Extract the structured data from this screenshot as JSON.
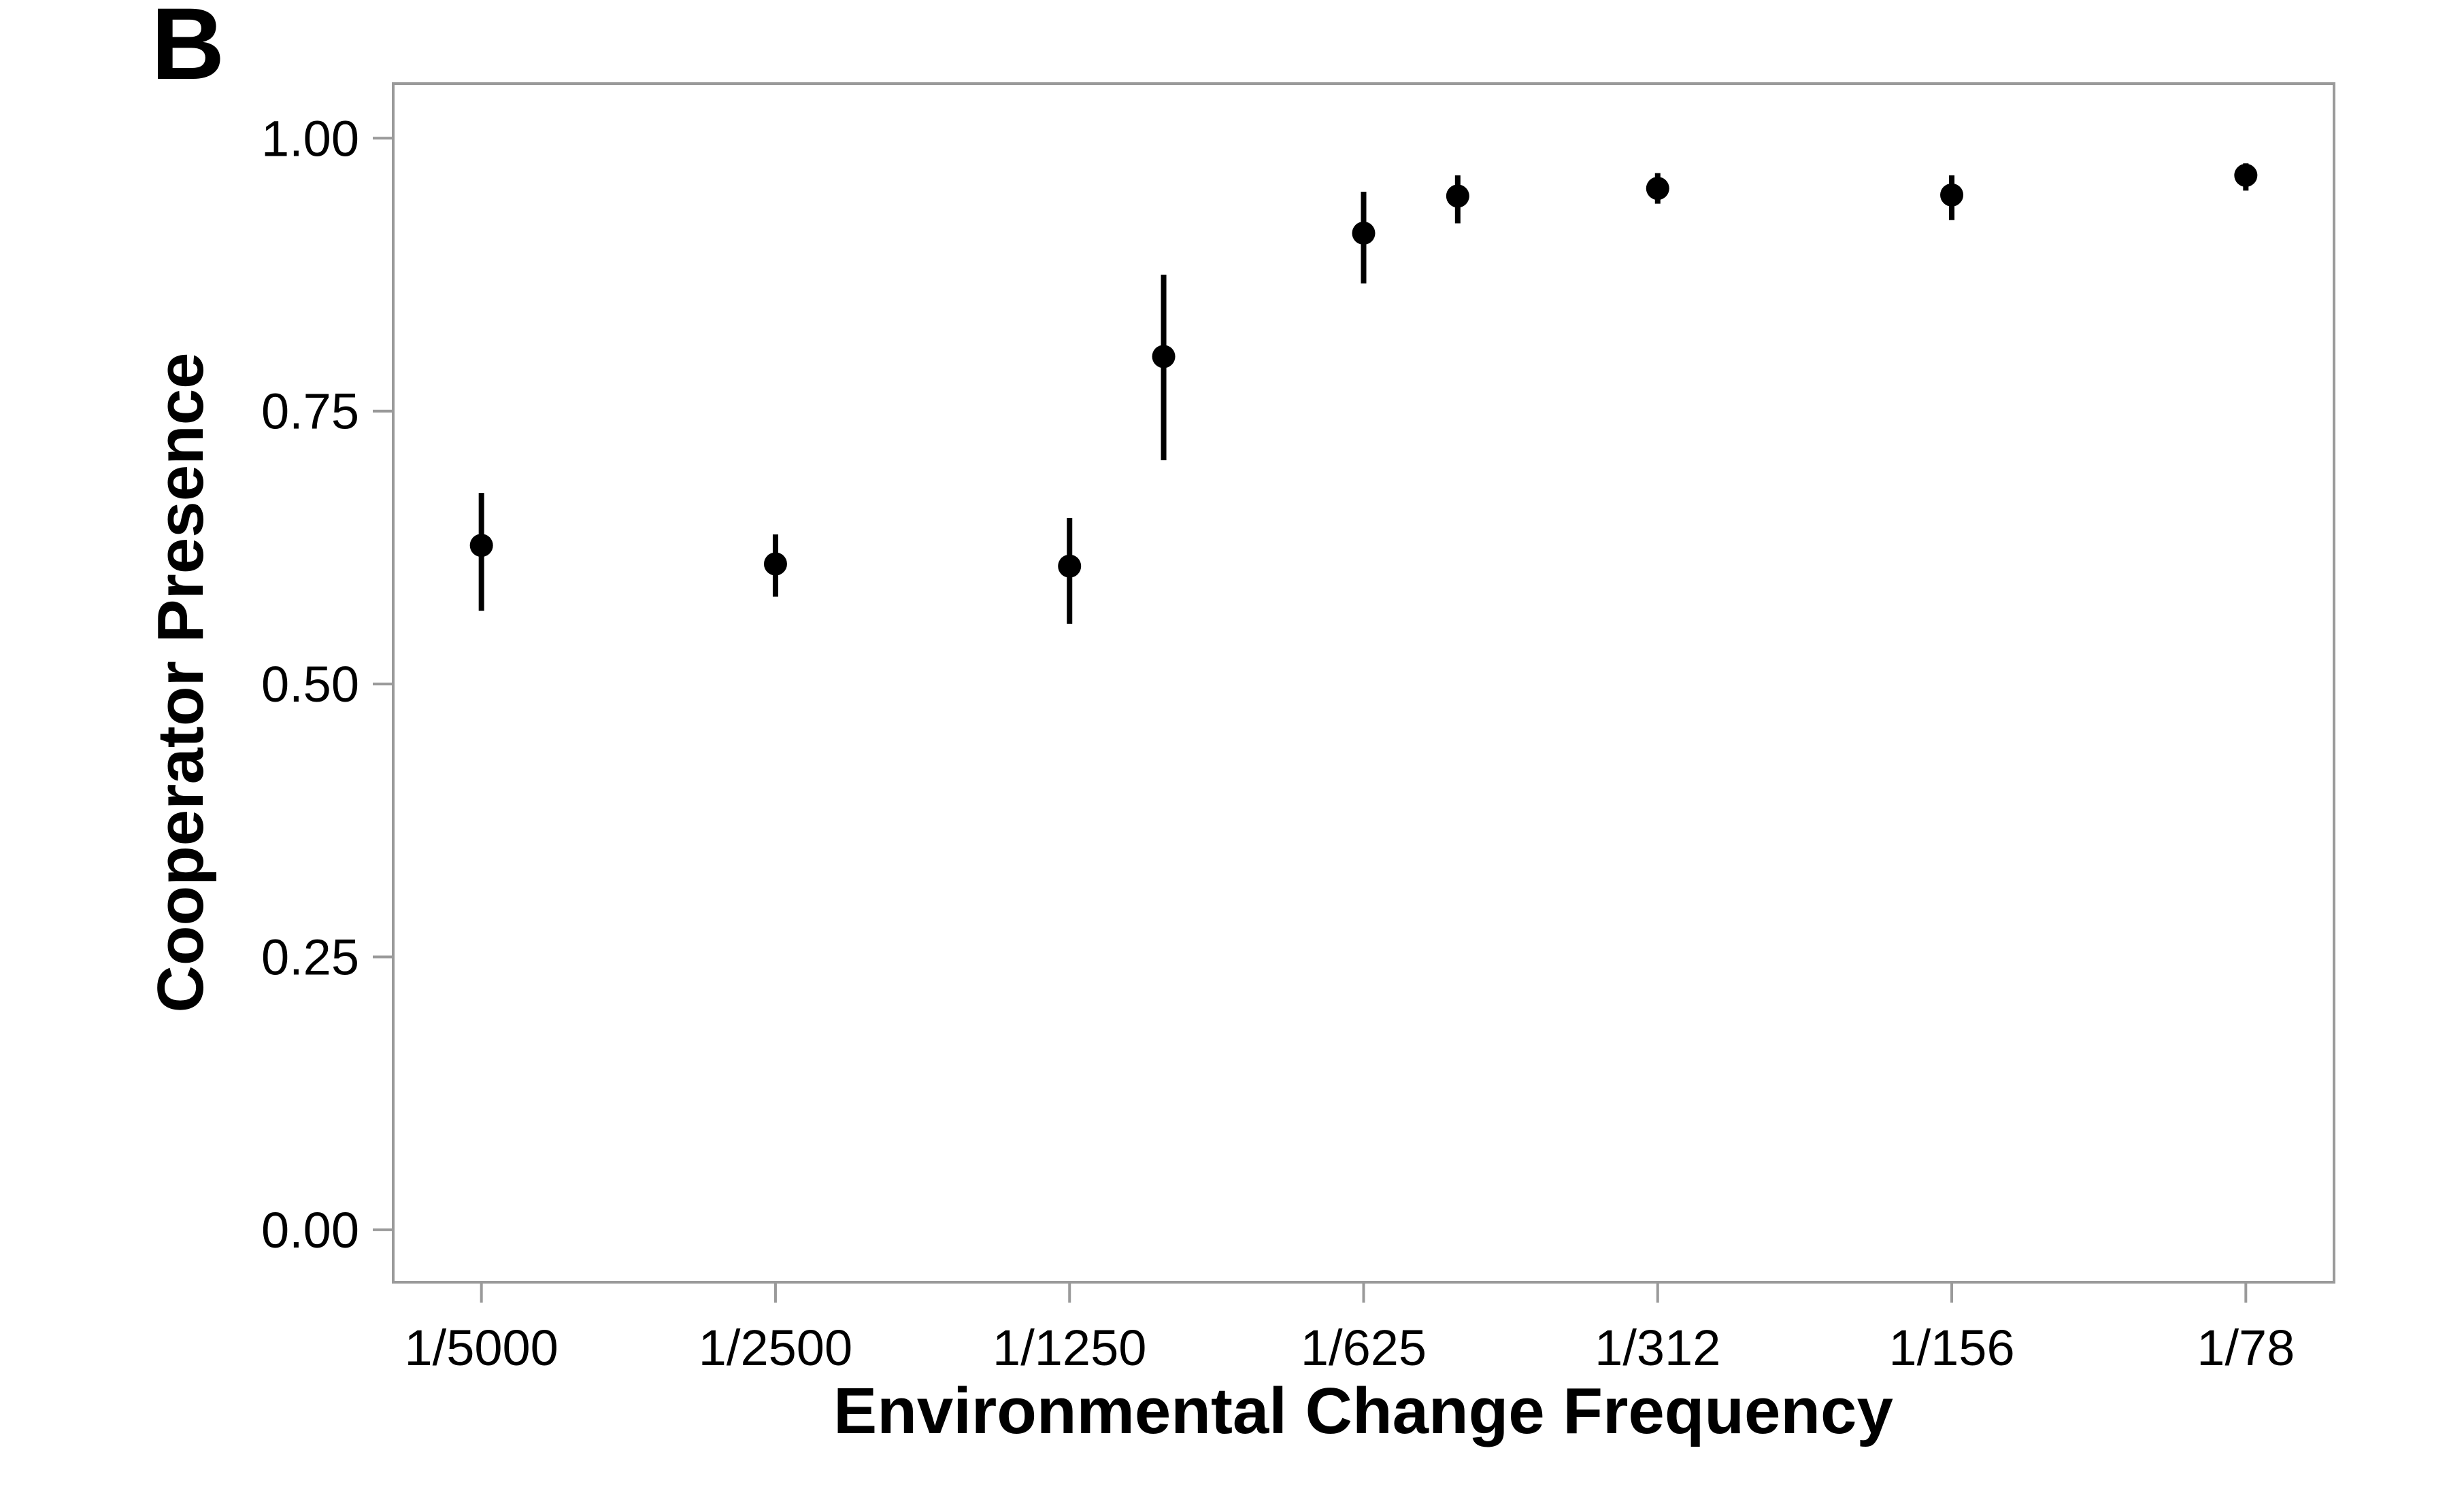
{
  "panel_label": "B",
  "chart_data": {
    "type": "scatter",
    "title": "",
    "xlabel": "Environmental Change Frequency",
    "ylabel": "Cooperator Presence",
    "x_ticks": [
      "1/5000",
      "1/2500",
      "1/1250",
      "1/625",
      "1/312",
      "1/156",
      "1/78"
    ],
    "x_tick_positions": [
      0,
      1,
      2,
      3,
      4,
      5,
      6
    ],
    "xlim": [
      -0.3,
      6.3
    ],
    "y_ticks": [
      "0.00",
      "0.25",
      "0.50",
      "0.75",
      "1.00"
    ],
    "y_tick_values": [
      0,
      0.25,
      0.5,
      0.75,
      1.0
    ],
    "ylim": [
      -0.048,
      1.05
    ],
    "grid": false,
    "series": [
      {
        "name": "Cooperator Presence",
        "points": [
          {
            "x": 0.0,
            "y": 0.627,
            "low": 0.567,
            "high": 0.675
          },
          {
            "x": 1.0,
            "y": 0.61,
            "low": 0.58,
            "high": 0.637
          },
          {
            "x": 2.0,
            "y": 0.608,
            "low": 0.555,
            "high": 0.652
          },
          {
            "x": 2.32,
            "y": 0.8,
            "low": 0.705,
            "high": 0.875
          },
          {
            "x": 3.0,
            "y": 0.913,
            "low": 0.867,
            "high": 0.951
          },
          {
            "x": 3.32,
            "y": 0.947,
            "low": 0.922,
            "high": 0.966
          },
          {
            "x": 4.0,
            "y": 0.954,
            "low": 0.94,
            "high": 0.968
          },
          {
            "x": 5.0,
            "y": 0.948,
            "low": 0.925,
            "high": 0.966
          },
          {
            "x": 6.0,
            "y": 0.966,
            "low": 0.952,
            "high": 0.977
          }
        ]
      }
    ]
  }
}
